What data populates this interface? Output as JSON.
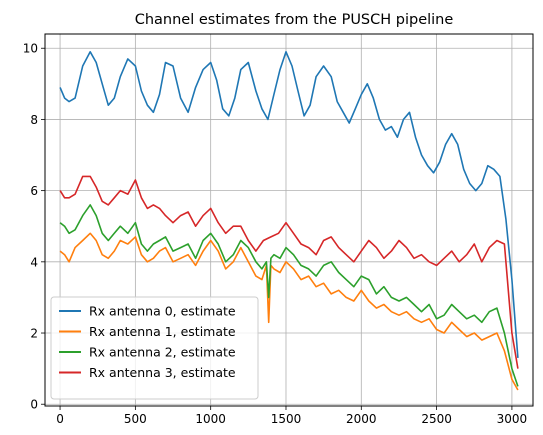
{
  "chart_data": {
    "type": "line",
    "title": "Channel estimates from the PUSCH pipeline",
    "xlabel": "",
    "ylabel": "",
    "xlim": [
      -100,
      3140
    ],
    "ylim": [
      -0.05,
      10.4
    ],
    "xticks": [
      0,
      500,
      1000,
      1500,
      2000,
      2500,
      3000
    ],
    "yticks": [
      0,
      2,
      4,
      6,
      8,
      10
    ],
    "grid": true,
    "legend_position": "lower-left",
    "series": [
      {
        "name": "Rx antenna 0, estimate",
        "color": "#1f77b4",
        "x": [
          0,
          30,
          60,
          100,
          150,
          200,
          240,
          280,
          320,
          360,
          400,
          450,
          500,
          540,
          580,
          620,
          660,
          700,
          750,
          800,
          850,
          900,
          950,
          1000,
          1040,
          1080,
          1120,
          1160,
          1200,
          1250,
          1300,
          1340,
          1380,
          1420,
          1460,
          1500,
          1540,
          1580,
          1620,
          1660,
          1700,
          1750,
          1800,
          1840,
          1880,
          1920,
          1960,
          2000,
          2040,
          2080,
          2120,
          2160,
          2200,
          2240,
          2280,
          2320,
          2360,
          2400,
          2440,
          2480,
          2520,
          2560,
          2600,
          2640,
          2680,
          2720,
          2760,
          2800,
          2840,
          2880,
          2920,
          2960,
          3000,
          3040
        ],
        "values": [
          8.9,
          8.6,
          8.5,
          8.6,
          9.5,
          9.9,
          9.6,
          9.0,
          8.4,
          8.6,
          9.2,
          9.7,
          9.5,
          8.8,
          8.4,
          8.2,
          8.7,
          9.6,
          9.5,
          8.6,
          8.2,
          8.9,
          9.4,
          9.6,
          9.1,
          8.3,
          8.1,
          8.6,
          9.4,
          9.6,
          8.8,
          8.3,
          8.0,
          8.7,
          9.4,
          9.9,
          9.5,
          8.8,
          8.1,
          8.4,
          9.2,
          9.5,
          9.2,
          8.5,
          8.2,
          7.9,
          8.3,
          8.7,
          9.0,
          8.6,
          8.0,
          7.7,
          7.8,
          7.5,
          8.0,
          8.2,
          7.5,
          7.0,
          6.7,
          6.5,
          6.8,
          7.3,
          7.6,
          7.3,
          6.6,
          6.2,
          6.0,
          6.2,
          6.7,
          6.6,
          6.4,
          5.2,
          3.5,
          1.3
        ]
      },
      {
        "name": "Rx antenna 1, estimate",
        "color": "#ff7f0e",
        "x": [
          0,
          30,
          60,
          100,
          150,
          200,
          240,
          280,
          320,
          360,
          400,
          450,
          500,
          540,
          580,
          620,
          660,
          700,
          750,
          800,
          850,
          900,
          950,
          1000,
          1050,
          1100,
          1150,
          1200,
          1250,
          1300,
          1340,
          1370,
          1385,
          1400,
          1420,
          1460,
          1500,
          1550,
          1600,
          1650,
          1700,
          1750,
          1800,
          1850,
          1900,
          1950,
          2000,
          2050,
          2100,
          2150,
          2200,
          2250,
          2300,
          2350,
          2400,
          2450,
          2500,
          2550,
          2600,
          2650,
          2700,
          2750,
          2800,
          2850,
          2900,
          2950,
          3000,
          3040
        ],
        "values": [
          4.3,
          4.2,
          4.0,
          4.4,
          4.6,
          4.8,
          4.6,
          4.2,
          4.1,
          4.3,
          4.6,
          4.5,
          4.7,
          4.2,
          4.0,
          4.1,
          4.3,
          4.4,
          4.0,
          4.1,
          4.2,
          3.9,
          4.3,
          4.6,
          4.3,
          3.8,
          4.0,
          4.4,
          4.0,
          3.6,
          3.5,
          3.9,
          2.3,
          3.9,
          3.8,
          3.7,
          4.0,
          3.8,
          3.5,
          3.6,
          3.3,
          3.4,
          3.1,
          3.2,
          3.0,
          2.9,
          3.2,
          2.9,
          2.7,
          2.8,
          2.6,
          2.5,
          2.6,
          2.4,
          2.3,
          2.4,
          2.1,
          2.0,
          2.3,
          2.1,
          1.9,
          2.0,
          1.8,
          1.9,
          2.0,
          1.5,
          0.7,
          0.4
        ]
      },
      {
        "name": "Rx antenna 2, estimate",
        "color": "#2ca02c",
        "x": [
          0,
          30,
          60,
          100,
          150,
          200,
          240,
          280,
          320,
          360,
          400,
          450,
          500,
          540,
          580,
          620,
          660,
          700,
          750,
          800,
          850,
          900,
          950,
          1000,
          1050,
          1100,
          1150,
          1200,
          1250,
          1300,
          1340,
          1370,
          1385,
          1400,
          1420,
          1460,
          1500,
          1550,
          1600,
          1650,
          1700,
          1750,
          1800,
          1850,
          1900,
          1950,
          2000,
          2050,
          2100,
          2150,
          2200,
          2250,
          2300,
          2350,
          2400,
          2450,
          2500,
          2550,
          2600,
          2650,
          2700,
          2750,
          2800,
          2850,
          2900,
          2950,
          3000,
          3040
        ],
        "values": [
          5.1,
          5.0,
          4.8,
          4.9,
          5.3,
          5.6,
          5.3,
          4.8,
          4.6,
          4.8,
          5.0,
          4.8,
          5.1,
          4.5,
          4.3,
          4.5,
          4.6,
          4.7,
          4.3,
          4.4,
          4.5,
          4.1,
          4.6,
          4.8,
          4.5,
          4.0,
          4.2,
          4.6,
          4.4,
          4.0,
          3.8,
          4.0,
          3.0,
          4.1,
          4.2,
          4.1,
          4.4,
          4.2,
          3.9,
          3.8,
          3.6,
          3.9,
          4.0,
          3.7,
          3.5,
          3.3,
          3.6,
          3.5,
          3.1,
          3.3,
          3.0,
          2.9,
          3.0,
          2.8,
          2.6,
          2.8,
          2.4,
          2.5,
          2.8,
          2.6,
          2.4,
          2.5,
          2.3,
          2.6,
          2.7,
          2.0,
          1.0,
          0.5
        ]
      },
      {
        "name": "Rx antenna 3, estimate",
        "color": "#d62728",
        "x": [
          0,
          30,
          60,
          100,
          150,
          200,
          240,
          280,
          320,
          360,
          400,
          450,
          500,
          540,
          580,
          620,
          660,
          700,
          750,
          800,
          850,
          900,
          950,
          1000,
          1050,
          1100,
          1150,
          1200,
          1250,
          1300,
          1350,
          1400,
          1450,
          1500,
          1550,
          1600,
          1650,
          1700,
          1750,
          1800,
          1850,
          1900,
          1950,
          2000,
          2050,
          2100,
          2150,
          2200,
          2250,
          2300,
          2350,
          2400,
          2450,
          2500,
          2550,
          2600,
          2650,
          2700,
          2750,
          2800,
          2850,
          2900,
          2950,
          3000,
          3040
        ],
        "values": [
          6.0,
          5.8,
          5.8,
          5.9,
          6.4,
          6.4,
          6.1,
          5.7,
          5.6,
          5.8,
          6.0,
          5.9,
          6.3,
          5.8,
          5.5,
          5.6,
          5.5,
          5.3,
          5.1,
          5.3,
          5.4,
          5.0,
          5.3,
          5.5,
          5.1,
          4.8,
          5.0,
          5.0,
          4.6,
          4.3,
          4.6,
          4.7,
          4.8,
          5.1,
          4.8,
          4.5,
          4.4,
          4.2,
          4.6,
          4.7,
          4.4,
          4.2,
          4.0,
          4.3,
          4.6,
          4.4,
          4.1,
          4.3,
          4.6,
          4.4,
          4.1,
          4.2,
          4.0,
          3.9,
          4.1,
          4.3,
          4.0,
          4.2,
          4.5,
          4.0,
          4.4,
          4.6,
          4.5,
          2.0,
          1.0
        ]
      }
    ]
  }
}
